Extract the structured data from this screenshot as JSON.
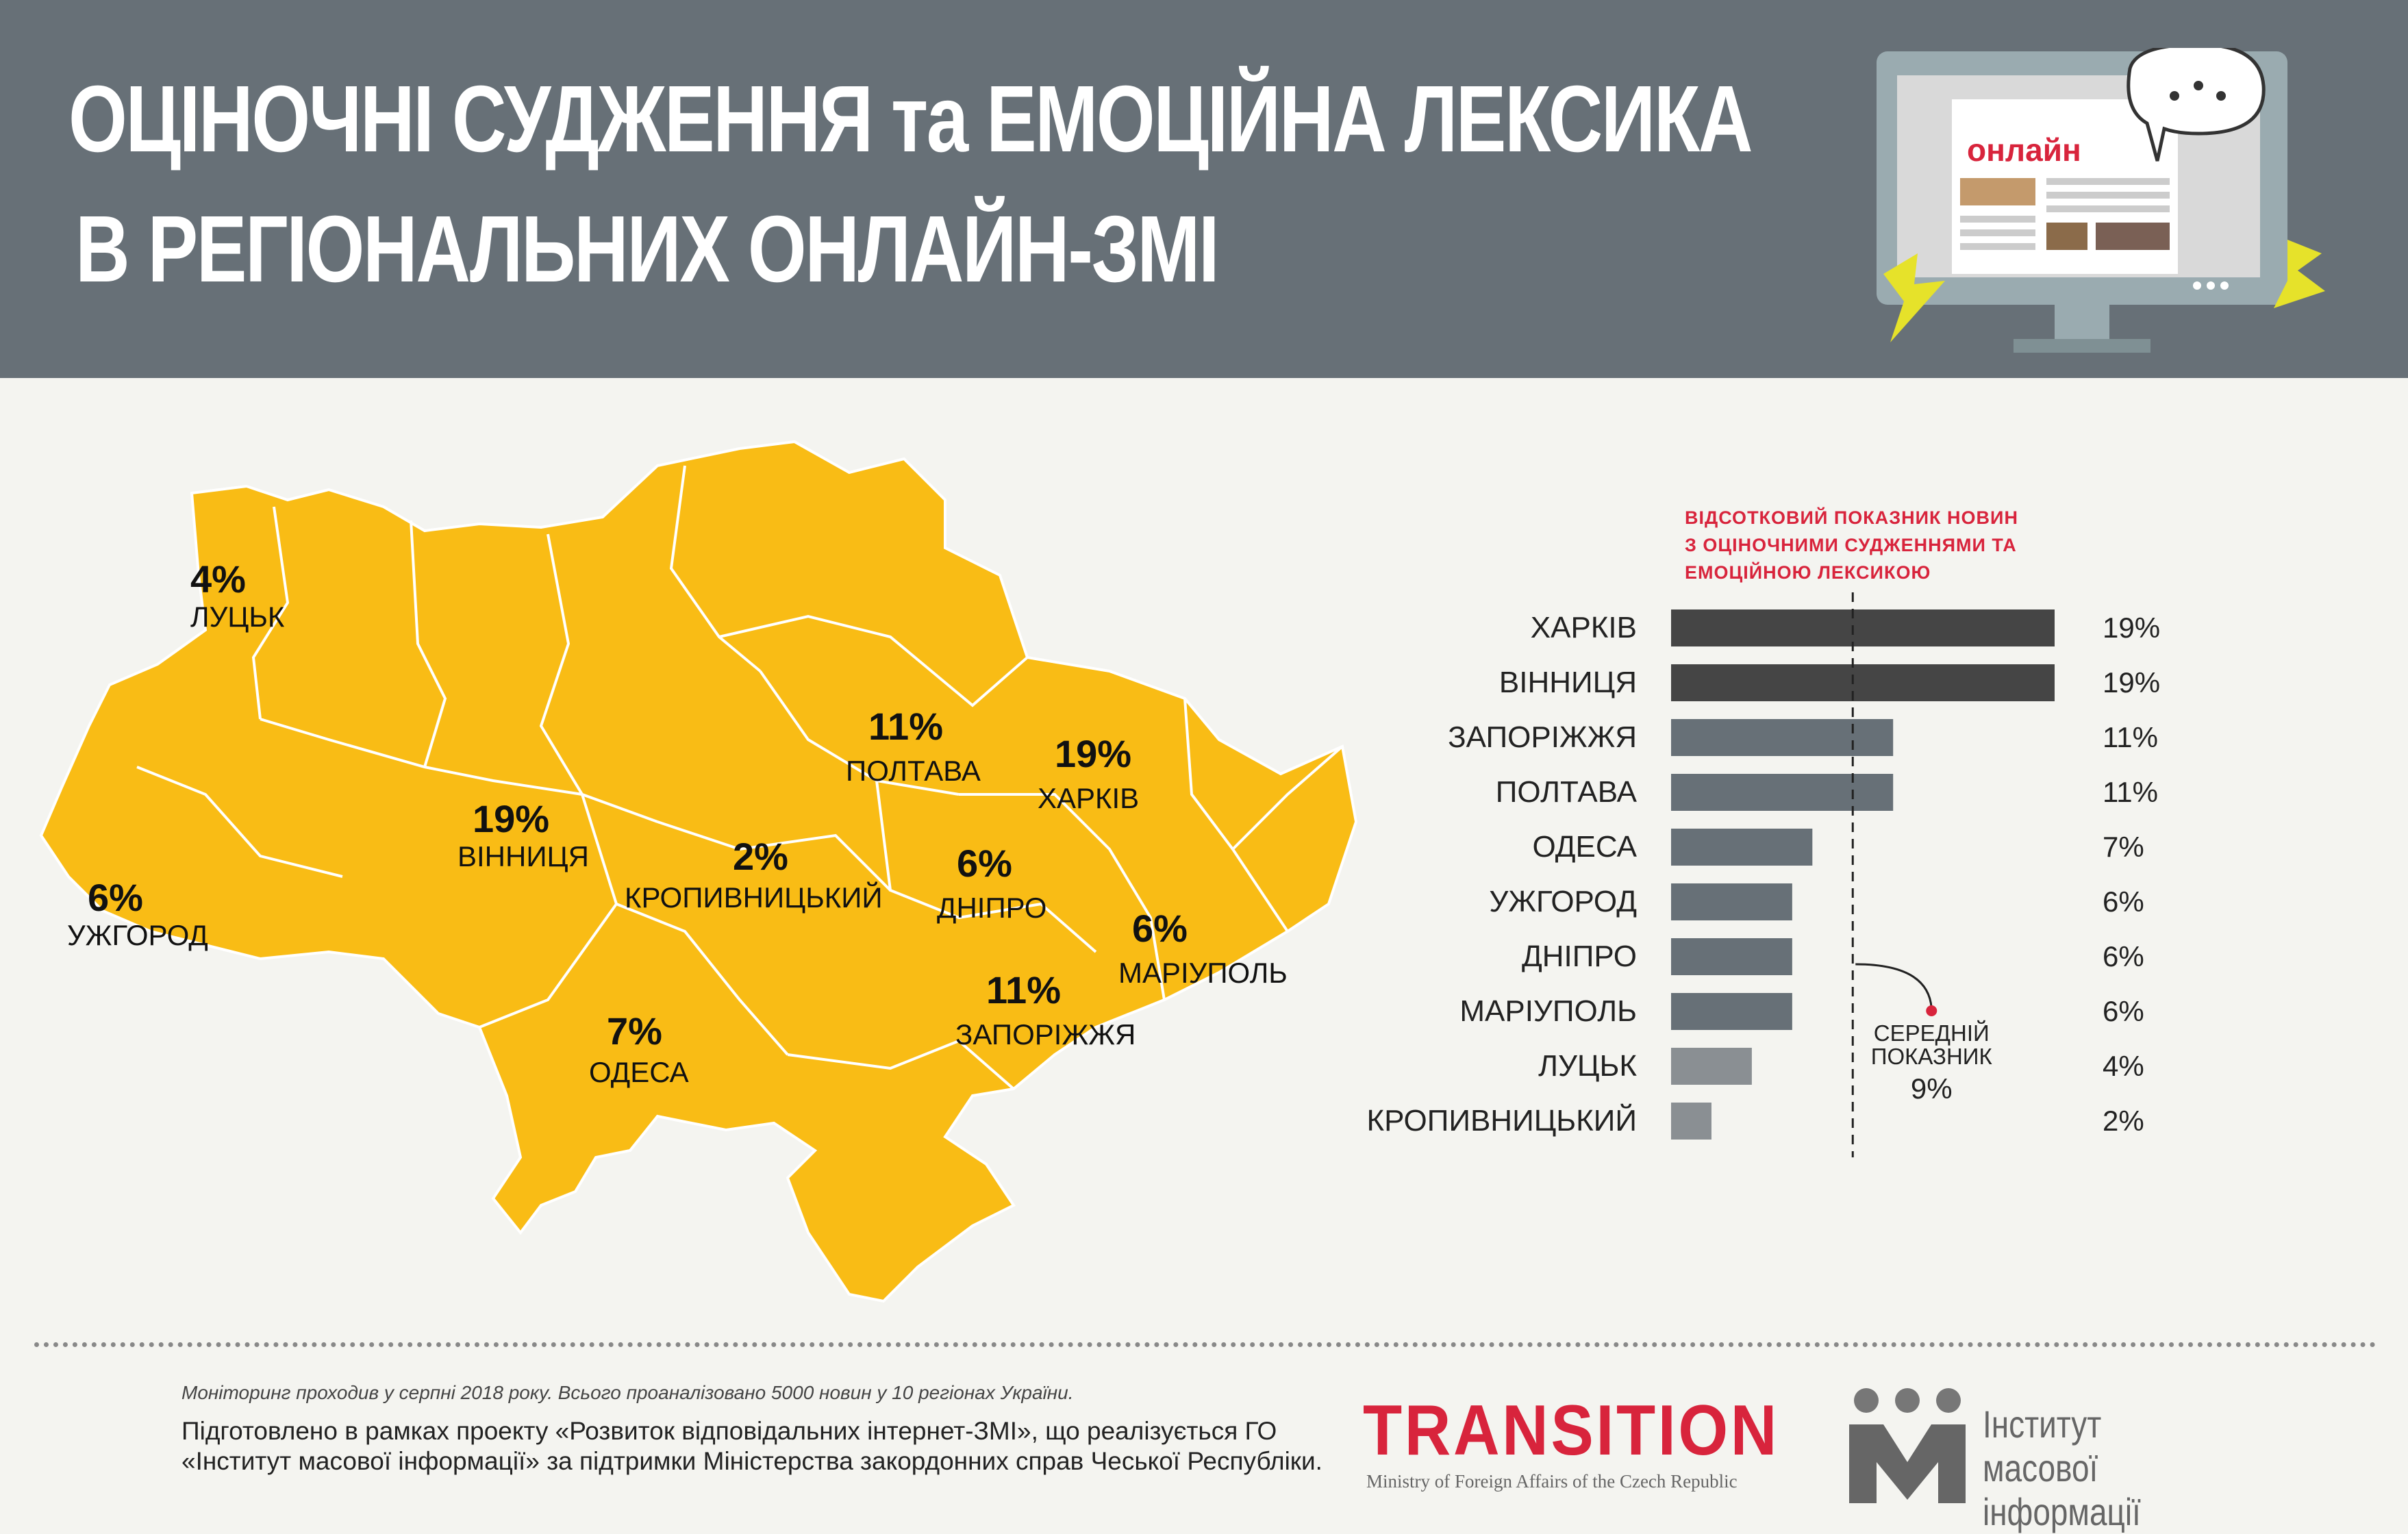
{
  "header": {
    "title_line1": "ОЦІНОЧНІ СУДЖЕННЯ та ЕМОЦІЙНА ЛЕКСИКА",
    "title_line2": "В РЕГІОНАЛЬНИХ ОНЛАЙН-ЗМІ",
    "monitor_label": "онлайн",
    "background": "#677077"
  },
  "map": {
    "fill_color": "#f9bc15",
    "cities": [
      {
        "name": "ЛУЦЬК",
        "value": "4%"
      },
      {
        "name": "ВІННИЦЯ",
        "value": "19%"
      },
      {
        "name": "УЖГОРОД",
        "value": "6%"
      },
      {
        "name": "ПОЛТАВА",
        "value": "11%"
      },
      {
        "name": "ХАРКІВ",
        "value": "19%"
      },
      {
        "name": "КРОПИВНИЦЬКИЙ",
        "value": "2%"
      },
      {
        "name": "ДНІПРО",
        "value": "6%"
      },
      {
        "name": "МАРІУПОЛЬ",
        "value": "6%"
      },
      {
        "name": "ЗАПОРІЖЖЯ",
        "value": "11%"
      },
      {
        "name": "ОДЕСА",
        "value": "7%"
      }
    ]
  },
  "chart_data": {
    "type": "bar",
    "orientation": "horizontal",
    "title_lines": [
      "ВІДСОТКОВИЙ ПОКАЗНИК НОВИН",
      "З ОЦІНОЧНИМИ СУДЖЕННЯМИ ТА",
      "ЕМОЦІЙНОЮ ЛЕКСИКОЮ"
    ],
    "categories": [
      "ХАРКІВ",
      "ВІННИЦЯ",
      "ЗАПОРІЖЖЯ",
      "ПОЛТАВА",
      "ОДЕСА",
      "УЖГОРОД",
      "ДНІПРО",
      "МАРІУПОЛЬ",
      "ЛУЦЬК",
      "КРОПИВНИЦЬКИЙ"
    ],
    "values": [
      19,
      19,
      11,
      11,
      7,
      6,
      6,
      6,
      4,
      2
    ],
    "value_labels": [
      "19%",
      "19%",
      "11%",
      "11%",
      "7%",
      "6%",
      "6%",
      "6%",
      "4%",
      "2%"
    ],
    "bar_colors": [
      "#454545",
      "#454545",
      "#677077",
      "#677077",
      "#677077",
      "#677077",
      "#677077",
      "#677077",
      "#8a8f93",
      "#8a8f93"
    ],
    "xlim": [
      0,
      19
    ],
    "average": {
      "value": 9,
      "label_lines": [
        "СЕРЕДНІЙ",
        "ПОКАЗНИК"
      ],
      "value_label": "9%"
    },
    "title_color": "#d8243c"
  },
  "footer": {
    "note": "Моніторинг проходив у серпні 2018 року. Всього проаналізовано 5000 новин у 10 регіонах України.",
    "prepared": "Підготовлено в рамках проекту «Розвиток відповідальних інтернет-ЗМІ», що реалізується ГО «Інститут масової інформації» за підтримки Міністерства закордонних справ Чеської Республіки.",
    "transition_logo": "TRANSITION",
    "transition_sub": "Ministry of Foreign Affairs of the Czech Republic",
    "imi_name": "Інститут масової інформації"
  }
}
